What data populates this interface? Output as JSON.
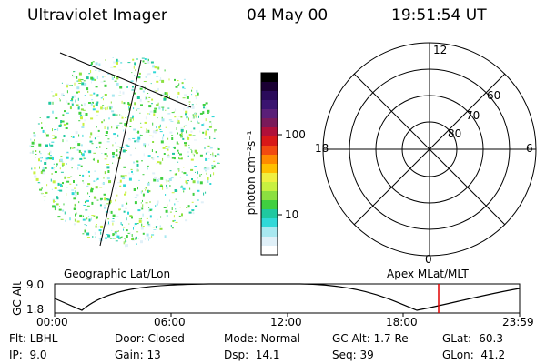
{
  "header": {
    "instrument": "Ultraviolet Imager",
    "date": "04 May 00",
    "time": "19:51:54 UT"
  },
  "colorbar": {
    "unit_label": "photon cm⁻²s⁻¹",
    "tick_labels": [
      "100",
      "10"
    ],
    "colors": [
      "#000000",
      "#1a0033",
      "#2a0a5a",
      "#3a1470",
      "#5a1f78",
      "#7a1a5a",
      "#b0103a",
      "#d81818",
      "#f24a10",
      "#ff8a00",
      "#ffc000",
      "#f0f040",
      "#c8f040",
      "#8ce040",
      "#40d040",
      "#20c8a0",
      "#30d8d8",
      "#a8e8f0",
      "#e0f0f8",
      "#ffffff"
    ]
  },
  "left_panel": {
    "caption": "Geographic Lat/Lon"
  },
  "right_panel": {
    "caption": "Apex MLat/MLT",
    "mlt_labels": {
      "top": "12",
      "left": "18",
      "right": "6",
      "bottom": "0"
    },
    "mlat_labels": [
      "80",
      "70",
      "60"
    ]
  },
  "altitude_strip": {
    "axis_label": "GC Alt",
    "y_ticks": [
      "9.0",
      "1.8"
    ],
    "x_ticks": [
      "00:00",
      "06:00",
      "12:00",
      "18:00",
      "23:59"
    ],
    "marker_color": "#e00000"
  },
  "footer": {
    "row1": [
      "Flt: LBHL",
      "Door: Closed",
      "Mode: Normal",
      "GC Alt: 1.7 Re",
      "GLat: -60.3"
    ],
    "row2": [
      "IP:  9.0",
      "Gain: 13",
      "Dsp:  14.1",
      "Seq: 39",
      "GLon:  41.2"
    ]
  }
}
